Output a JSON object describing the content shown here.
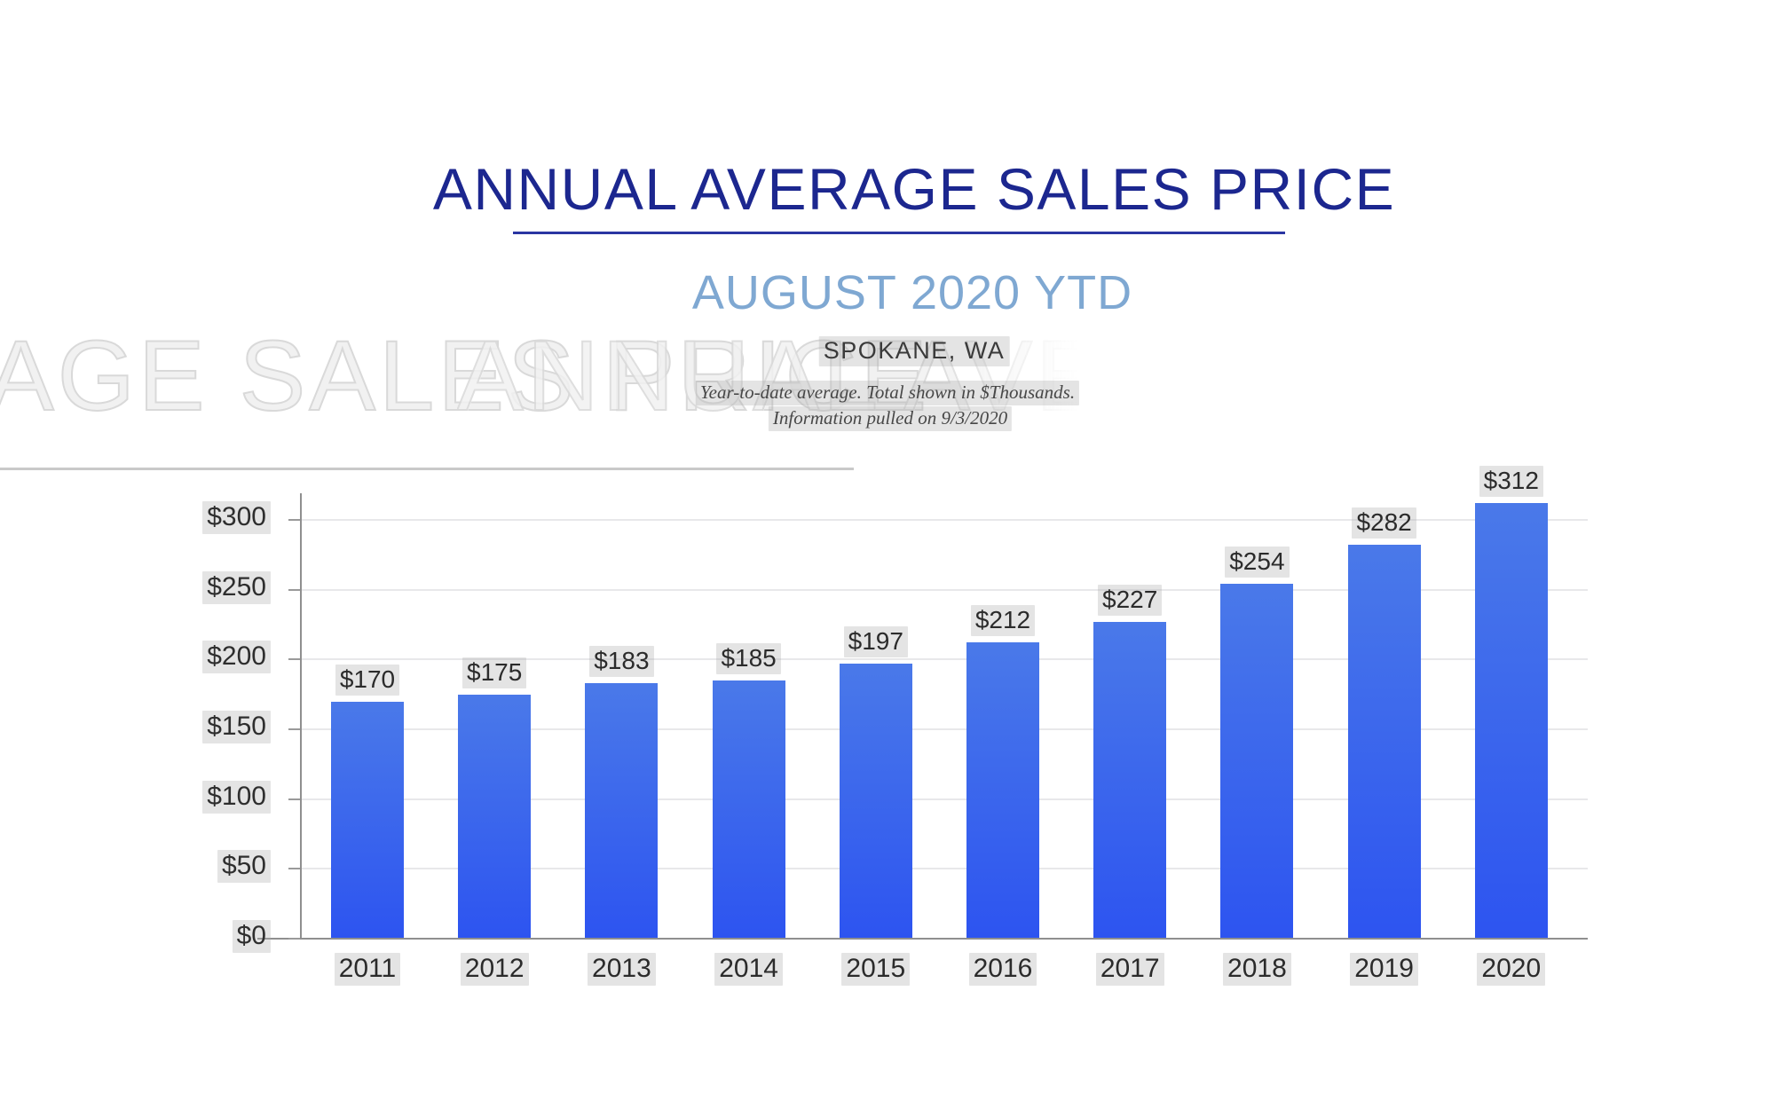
{
  "header": {
    "title": "ANNUAL AVERAGE SALES PRICE",
    "subtitle": "AUGUST 2020 YTD",
    "location": "SPOKANE, WA",
    "note_line1": "Year-to-date average.  Total shown in $Thousands.",
    "note_line2": "Information pulled on 9/3/2020"
  },
  "watermark": {
    "left_text": "AGE SALES PRICE",
    "right_text": "ANNUAL AVERAGE"
  },
  "colors": {
    "title_navy": "#1c278f",
    "underline_navy": "#2a35a2",
    "subtitle_blue": "#7fa8d2",
    "bar_gradient_top": "#4a79e9",
    "bar_gradient_bottom": "#2d54f0",
    "axis_gray": "#8f8f8f",
    "gridline_gray": "#e8e8ea",
    "label_dark": "#2b2b2b",
    "label_highlight": "rgba(170,170,170,0.32)",
    "watermark_gray": "#d9d9d9"
  },
  "chart_data": {
    "type": "bar",
    "title": "ANNUAL AVERAGE SALES PRICE",
    "subtitle": "AUGUST 2020 YTD",
    "location": "SPOKANE, WA",
    "categories": [
      "2011",
      "2012",
      "2013",
      "2014",
      "2015",
      "2016",
      "2017",
      "2018",
      "2019",
      "2020"
    ],
    "values": [
      170,
      175,
      183,
      185,
      197,
      212,
      227,
      254,
      282,
      312
    ],
    "value_labels": [
      "$170",
      "$175",
      "$183",
      "$185",
      "$197",
      "$212",
      "$227",
      "$254",
      "$282",
      "$312"
    ],
    "y_tick_values": [
      0,
      50,
      100,
      150,
      200,
      250,
      300
    ],
    "y_tick_labels": [
      "$0",
      "$50",
      "$100",
      "$150",
      "$200",
      "$250",
      "$300"
    ],
    "ylim": [
      0,
      320
    ],
    "units": "$Thousands",
    "grid": true,
    "legend": "none",
    "xlabel": "",
    "ylabel": ""
  }
}
